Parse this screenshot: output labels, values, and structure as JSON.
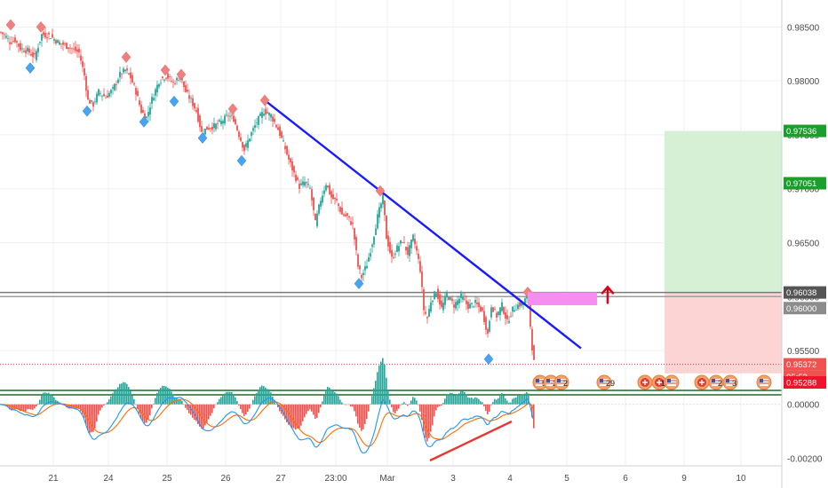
{
  "chart_data": {
    "type": "candlestick",
    "instrument_panel": {
      "price_axis_ticks": [
        0.985,
        0.98,
        0.975,
        0.97,
        0.965,
        0.96,
        0.955
      ],
      "price_axis_labels": [
        "0.98500",
        "0.98000",
        "0.97500",
        "0.97000",
        "0.96500",
        "0.96000",
        "0.95500"
      ],
      "ylim": [
        0.9513,
        0.9875
      ],
      "close_path": [
        [
          0,
          0.9845
        ],
        [
          5,
          0.9842
        ],
        [
          10,
          0.9836
        ],
        [
          16,
          0.9838
        ],
        [
          22,
          0.983
        ],
        [
          30,
          0.9828
        ],
        [
          38,
          0.9822
        ],
        [
          46,
          0.9843
        ],
        [
          55,
          0.9842
        ],
        [
          64,
          0.9836
        ],
        [
          72,
          0.9833
        ],
        [
          80,
          0.983
        ],
        [
          88,
          0.9826
        ],
        [
          94,
          0.9805
        ],
        [
          98,
          0.9782
        ],
        [
          104,
          0.9778
        ],
        [
          110,
          0.979
        ],
        [
          118,
          0.9785
        ],
        [
          126,
          0.9792
        ],
        [
          134,
          0.9806
        ],
        [
          140,
          0.981
        ],
        [
          146,
          0.9803
        ],
        [
          152,
          0.979
        ],
        [
          158,
          0.9772
        ],
        [
          164,
          0.9766
        ],
        [
          170,
          0.9783
        ],
        [
          178,
          0.98
        ],
        [
          186,
          0.9805
        ],
        [
          194,
          0.9798
        ],
        [
          202,
          0.9804
        ],
        [
          208,
          0.979
        ],
        [
          214,
          0.9782
        ],
        [
          220,
          0.9772
        ],
        [
          226,
          0.9752
        ],
        [
          232,
          0.9756
        ],
        [
          240,
          0.9758
        ],
        [
          248,
          0.9762
        ],
        [
          256,
          0.9768
        ],
        [
          262,
          0.9765
        ],
        [
          268,
          0.975
        ],
        [
          274,
          0.9736
        ],
        [
          280,
          0.9748
        ],
        [
          288,
          0.9762
        ],
        [
          296,
          0.9772
        ],
        [
          304,
          0.9768
        ],
        [
          312,
          0.9755
        ],
        [
          318,
          0.9742
        ],
        [
          324,
          0.9727
        ],
        [
          330,
          0.9714
        ],
        [
          336,
          0.9702
        ],
        [
          342,
          0.9706
        ],
        [
          348,
          0.97
        ],
        [
          354,
          0.9668
        ],
        [
          360,
          0.969
        ],
        [
          366,
          0.9705
        ],
        [
          372,
          0.9692
        ],
        [
          378,
          0.9688
        ],
        [
          384,
          0.9676
        ],
        [
          390,
          0.9674
        ],
        [
          396,
          0.9666
        ],
        [
          402,
          0.9628
        ],
        [
          406,
          0.9618
        ],
        [
          412,
          0.963
        ],
        [
          418,
          0.965
        ],
        [
          424,
          0.9674
        ],
        [
          430,
          0.9692
        ],
        [
          434,
          0.9655
        ],
        [
          440,
          0.9635
        ],
        [
          446,
          0.9645
        ],
        [
          452,
          0.9652
        ],
        [
          458,
          0.964
        ],
        [
          464,
          0.9655
        ],
        [
          468,
          0.9642
        ],
        [
          472,
          0.9625
        ],
        [
          476,
          0.9588
        ],
        [
          480,
          0.958
        ],
        [
          484,
          0.9596
        ],
        [
          490,
          0.9605
        ],
        [
          496,
          0.9589
        ],
        [
          502,
          0.9602
        ],
        [
          510,
          0.9592
        ],
        [
          518,
          0.96
        ],
        [
          526,
          0.9591
        ],
        [
          534,
          0.9594
        ],
        [
          542,
          0.9586
        ],
        [
          548,
          0.9565
        ],
        [
          552,
          0.9592
        ],
        [
          558,
          0.9582
        ],
        [
          564,
          0.9592
        ],
        [
          570,
          0.9576
        ],
        [
          576,
          0.9588
        ],
        [
          582,
          0.9592
        ],
        [
          588,
          0.9594
        ],
        [
          592,
          0.96
        ],
        [
          594,
          0.9598
        ],
        [
          597,
          0.956
        ],
        [
          600,
          0.9539
        ]
      ],
      "swing_high_markers": [
        [
          12,
          0.9852
        ],
        [
          46,
          0.985
        ],
        [
          142,
          0.9822
        ],
        [
          186,
          0.981
        ],
        [
          204,
          0.9806
        ],
        [
          262,
          0.9774
        ],
        [
          298,
          0.9782
        ],
        [
          428,
          0.9698
        ],
        [
          594,
          0.9604
        ]
      ],
      "swing_low_markers": [
        [
          34,
          0.9812
        ],
        [
          98,
          0.9772
        ],
        [
          162,
          0.9762
        ],
        [
          196,
          0.9781
        ],
        [
          228,
          0.9747
        ],
        [
          272,
          0.9726
        ],
        [
          404,
          0.9612
        ],
        [
          550,
          0.9542
        ]
      ],
      "trendline": {
        "from": [
          298,
          0.9782
        ],
        "to": [
          654,
          0.9552
        ],
        "color": "#1a1aff"
      },
      "levels": [
        {
          "price": 0.96038,
          "color": "#7a7a7a",
          "label": "0.96038",
          "label_bg": "#555555"
        },
        {
          "price": 0.96,
          "color": "#9e9e9e",
          "label": "0.96000",
          "label_bg": "#8c8c8c"
        },
        {
          "price": 0.95372,
          "color": "#e53935",
          "label": "0.95372",
          "label_bg": "#ef5350",
          "dotted": true
        }
      ],
      "countdown_label": "05:53",
      "position": {
        "target_price": 0.97536,
        "target_label": "0.97536",
        "mid_price": 0.97051,
        "mid_label": "0.97051",
        "entry_price": 0.96038,
        "stop_price": 0.95288,
        "stop_label": "0.95288",
        "target_color": "#d6f0d6",
        "stop_color": "#fcd4d4",
        "label_green": "#1b9e2b",
        "label_red": "#f0142a"
      },
      "resistance_box": {
        "from_index": 594,
        "to_index": 672,
        "top": 0.9604,
        "bottom": 0.9592,
        "color": "#f58ef0"
      },
      "breakout_arrow": {
        "color": "#e0001a"
      },
      "event_markers": [
        {
          "label": "5",
          "flag": "us"
        },
        {
          "label": "2",
          "flag": "us"
        },
        {
          "label": "2",
          "flag": "us"
        },
        {
          "label": "29",
          "flag": "us"
        },
        {
          "label": "",
          "flag": "ch"
        },
        {
          "label": "12",
          "flag": "ch"
        },
        {
          "label": "",
          "flag": "us"
        },
        {
          "label": "",
          "flag": "ch"
        },
        {
          "label": "2",
          "flag": "us"
        },
        {
          "label": "3",
          "flag": "us"
        },
        {
          "label": "",
          "flag": "us"
        }
      ]
    },
    "macd_panel": {
      "axis_ticks": [
        0.0,
        -0.002
      ],
      "axis_labels": [
        "0.00000",
        "-0.00200"
      ],
      "ylim": [
        -0.00228,
        0.00032
      ],
      "macd_color": "#2196f3",
      "signal_color": "#ff6d00",
      "hist_pos_color": "#26a69a",
      "hist_neg_color": "#ef5350",
      "divergence_line": {
        "color": "#e53935"
      }
    },
    "x_axis": {
      "labels": [
        "21",
        "24",
        "25",
        "26",
        "27",
        "23:00",
        "Mar",
        "3",
        "4",
        "5",
        "6",
        "9",
        "10"
      ],
      "label_bars": [
        60,
        122,
        188,
        254,
        316,
        378,
        436,
        510,
        574,
        638,
        704,
        770,
        834
      ]
    }
  }
}
